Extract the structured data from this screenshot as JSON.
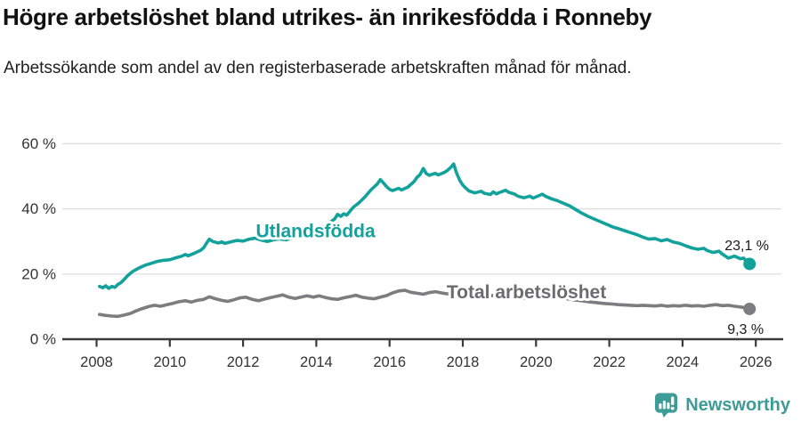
{
  "header": {
    "title": "Högre arbetslöshet bland utrikes- än inrikesfödda i Ronneby",
    "subtitle": "Arbetssökande som andel av den registerbaserade arbetskraften månad för månad."
  },
  "footer": {
    "brand": "Newsworthy",
    "logo_icon": "newsworthy-chart-bubble-icon"
  },
  "colors": {
    "accent_teal": "#13a29b",
    "line_gray": "#7c7c81",
    "series_label_gray": "#6b6b70",
    "axis": "#3a3a3a",
    "tick_text": "#333333",
    "grid": "#dcdcdc",
    "value_label_text": "#1a1a1a",
    "logo_teal": "#3d9c96",
    "background": "#ffffff"
  },
  "chart_data": {
    "type": "line",
    "title": "Högre arbetslöshet bland utrikes- än inrikesfödda i Ronneby",
    "subtitle": "Arbetssökande som andel av den registerbaserade arbetskraften månad för månad.",
    "unit": "%",
    "grid": "horizontal-only",
    "legend_position": "inline-labels",
    "x_axis": {
      "ticks": [
        2008,
        2010,
        2012,
        2014,
        2016,
        2018,
        2020,
        2022,
        2024,
        2026
      ],
      "range": [
        2007.1,
        2026.8
      ]
    },
    "y_axis": {
      "ticks": [
        {
          "value": 0,
          "label": "0 %"
        },
        {
          "value": 20,
          "label": "20 %"
        },
        {
          "value": 40,
          "label": "40 %"
        },
        {
          "value": 60,
          "label": "60 %"
        }
      ],
      "range": [
        0,
        60
      ]
    },
    "series": [
      {
        "name": "Utlandsfödda",
        "color": "#13a29b",
        "label_color": "#13a29b",
        "label_anchor": {
          "year": 2012.35,
          "value": 31.3
        },
        "end_value": 23.1,
        "end_label": "23,1 %",
        "points": [
          [
            2008.08,
            16.2
          ],
          [
            2008.17,
            15.8
          ],
          [
            2008.25,
            16.4
          ],
          [
            2008.33,
            15.6
          ],
          [
            2008.42,
            16.2
          ],
          [
            2008.5,
            15.9
          ],
          [
            2008.58,
            16.8
          ],
          [
            2008.67,
            17.4
          ],
          [
            2008.75,
            18.3
          ],
          [
            2008.83,
            19.3
          ],
          [
            2008.92,
            20.2
          ],
          [
            2009.0,
            20.9
          ],
          [
            2009.17,
            21.9
          ],
          [
            2009.33,
            22.7
          ],
          [
            2009.5,
            23.3
          ],
          [
            2009.67,
            23.9
          ],
          [
            2009.83,
            24.2
          ],
          [
            2010.0,
            24.4
          ],
          [
            2010.17,
            25.0
          ],
          [
            2010.33,
            25.5
          ],
          [
            2010.42,
            26.0
          ],
          [
            2010.5,
            25.6
          ],
          [
            2010.67,
            26.4
          ],
          [
            2010.83,
            27.2
          ],
          [
            2010.92,
            28.0
          ],
          [
            2011.0,
            29.4
          ],
          [
            2011.08,
            30.7
          ],
          [
            2011.17,
            30.0
          ],
          [
            2011.33,
            29.5
          ],
          [
            2011.42,
            29.9
          ],
          [
            2011.5,
            29.4
          ],
          [
            2011.67,
            29.9
          ],
          [
            2011.83,
            30.3
          ],
          [
            2012.0,
            30.1
          ],
          [
            2012.17,
            30.7
          ],
          [
            2012.33,
            31.0
          ],
          [
            2012.5,
            30.4
          ],
          [
            2012.67,
            30.0
          ],
          [
            2012.83,
            30.5
          ],
          [
            2013.0,
            30.8
          ],
          [
            2013.17,
            30.5
          ],
          [
            2013.33,
            31.0
          ],
          [
            2013.5,
            31.4
          ],
          [
            2013.67,
            31.9
          ],
          [
            2013.83,
            32.5
          ],
          [
            2014.0,
            33.2
          ],
          [
            2014.17,
            34.3
          ],
          [
            2014.33,
            35.5
          ],
          [
            2014.5,
            36.9
          ],
          [
            2014.58,
            38.3
          ],
          [
            2014.67,
            37.7
          ],
          [
            2014.75,
            38.5
          ],
          [
            2014.83,
            38.1
          ],
          [
            2014.92,
            39.3
          ],
          [
            2015.0,
            40.4
          ],
          [
            2015.17,
            41.9
          ],
          [
            2015.33,
            43.7
          ],
          [
            2015.5,
            45.9
          ],
          [
            2015.67,
            47.7
          ],
          [
            2015.75,
            49.0
          ],
          [
            2015.83,
            48.0
          ],
          [
            2015.92,
            46.8
          ],
          [
            2016.0,
            46.0
          ],
          [
            2016.08,
            45.6
          ],
          [
            2016.25,
            46.3
          ],
          [
            2016.33,
            45.8
          ],
          [
            2016.5,
            46.7
          ],
          [
            2016.67,
            48.4
          ],
          [
            2016.75,
            49.7
          ],
          [
            2016.83,
            50.5
          ],
          [
            2016.92,
            52.4
          ],
          [
            2017.0,
            50.9
          ],
          [
            2017.08,
            50.3
          ],
          [
            2017.25,
            50.9
          ],
          [
            2017.33,
            50.4
          ],
          [
            2017.5,
            51.2
          ],
          [
            2017.58,
            51.8
          ],
          [
            2017.67,
            52.7
          ],
          [
            2017.75,
            53.8
          ],
          [
            2017.83,
            51.0
          ],
          [
            2017.92,
            48.7
          ],
          [
            2018.0,
            47.3
          ],
          [
            2018.08,
            46.4
          ],
          [
            2018.17,
            45.5
          ],
          [
            2018.33,
            44.9
          ],
          [
            2018.5,
            45.4
          ],
          [
            2018.58,
            44.8
          ],
          [
            2018.75,
            44.4
          ],
          [
            2018.83,
            45.2
          ],
          [
            2018.92,
            44.6
          ],
          [
            2019.0,
            45.0
          ],
          [
            2019.17,
            45.7
          ],
          [
            2019.25,
            45.1
          ],
          [
            2019.42,
            44.5
          ],
          [
            2019.5,
            43.9
          ],
          [
            2019.67,
            43.4
          ],
          [
            2019.83,
            43.9
          ],
          [
            2019.92,
            43.3
          ],
          [
            2020.0,
            43.7
          ],
          [
            2020.17,
            44.5
          ],
          [
            2020.25,
            43.9
          ],
          [
            2020.42,
            43.1
          ],
          [
            2020.58,
            42.5
          ],
          [
            2020.75,
            41.7
          ],
          [
            2020.92,
            40.9
          ],
          [
            2021.08,
            39.8
          ],
          [
            2021.25,
            38.7
          ],
          [
            2021.42,
            37.7
          ],
          [
            2021.58,
            36.9
          ],
          [
            2021.75,
            36.1
          ],
          [
            2021.92,
            35.3
          ],
          [
            2022.08,
            34.5
          ],
          [
            2022.25,
            33.9
          ],
          [
            2022.42,
            33.3
          ],
          [
            2022.58,
            32.7
          ],
          [
            2022.75,
            32.1
          ],
          [
            2022.92,
            31.3
          ],
          [
            2023.08,
            30.7
          ],
          [
            2023.25,
            30.9
          ],
          [
            2023.42,
            30.2
          ],
          [
            2023.58,
            30.6
          ],
          [
            2023.75,
            29.8
          ],
          [
            2023.92,
            29.4
          ],
          [
            2024.08,
            28.7
          ],
          [
            2024.25,
            28.0
          ],
          [
            2024.42,
            27.6
          ],
          [
            2024.58,
            27.9
          ],
          [
            2024.67,
            27.2
          ],
          [
            2024.83,
            26.6
          ],
          [
            2025.0,
            27.0
          ],
          [
            2025.08,
            26.2
          ],
          [
            2025.25,
            24.9
          ],
          [
            2025.42,
            25.5
          ],
          [
            2025.58,
            24.7
          ],
          [
            2025.67,
            24.9
          ],
          [
            2025.75,
            23.8
          ],
          [
            2025.83,
            23.1
          ]
        ]
      },
      {
        "name": "Total arbetslöshet",
        "color": "#7c7c81",
        "label_color": "#6b6b70",
        "label_anchor": {
          "year": 2017.56,
          "value": 12.55
        },
        "end_value": 9.3,
        "end_label": "9,3 %",
        "points": [
          [
            2008.08,
            7.6
          ],
          [
            2008.25,
            7.3
          ],
          [
            2008.42,
            7.1
          ],
          [
            2008.58,
            7.0
          ],
          [
            2008.75,
            7.4
          ],
          [
            2008.92,
            7.9
          ],
          [
            2009.08,
            8.7
          ],
          [
            2009.25,
            9.4
          ],
          [
            2009.42,
            10.0
          ],
          [
            2009.58,
            10.4
          ],
          [
            2009.75,
            10.1
          ],
          [
            2009.92,
            10.6
          ],
          [
            2010.08,
            11.0
          ],
          [
            2010.25,
            11.5
          ],
          [
            2010.42,
            11.8
          ],
          [
            2010.58,
            11.4
          ],
          [
            2010.75,
            11.9
          ],
          [
            2010.92,
            12.2
          ],
          [
            2011.08,
            13.0
          ],
          [
            2011.25,
            12.4
          ],
          [
            2011.42,
            11.9
          ],
          [
            2011.58,
            11.6
          ],
          [
            2011.75,
            12.1
          ],
          [
            2011.92,
            12.7
          ],
          [
            2012.08,
            12.9
          ],
          [
            2012.25,
            12.2
          ],
          [
            2012.42,
            11.8
          ],
          [
            2012.58,
            12.3
          ],
          [
            2012.75,
            12.8
          ],
          [
            2012.92,
            13.2
          ],
          [
            2013.08,
            13.6
          ],
          [
            2013.25,
            12.9
          ],
          [
            2013.42,
            12.5
          ],
          [
            2013.58,
            12.9
          ],
          [
            2013.75,
            13.3
          ],
          [
            2013.92,
            12.9
          ],
          [
            2014.08,
            13.3
          ],
          [
            2014.25,
            12.8
          ],
          [
            2014.42,
            12.4
          ],
          [
            2014.58,
            12.2
          ],
          [
            2014.75,
            12.7
          ],
          [
            2014.92,
            13.1
          ],
          [
            2015.08,
            13.5
          ],
          [
            2015.25,
            12.9
          ],
          [
            2015.42,
            12.6
          ],
          [
            2015.58,
            12.4
          ],
          [
            2015.75,
            12.9
          ],
          [
            2015.92,
            13.4
          ],
          [
            2016.08,
            14.2
          ],
          [
            2016.25,
            14.8
          ],
          [
            2016.42,
            15.0
          ],
          [
            2016.58,
            14.4
          ],
          [
            2016.75,
            14.1
          ],
          [
            2016.92,
            13.8
          ],
          [
            2017.08,
            14.3
          ],
          [
            2017.25,
            14.6
          ],
          [
            2017.42,
            14.2
          ],
          [
            2017.58,
            13.9
          ],
          [
            2017.75,
            14.1
          ],
          [
            2017.92,
            13.8
          ],
          [
            2018.08,
            14.0
          ],
          [
            2018.25,
            13.7
          ],
          [
            2018.42,
            13.4
          ],
          [
            2018.58,
            13.6
          ],
          [
            2018.75,
            13.3
          ],
          [
            2018.92,
            13.5
          ],
          [
            2019.08,
            13.2
          ],
          [
            2019.25,
            12.9
          ],
          [
            2019.42,
            12.7
          ],
          [
            2019.58,
            12.5
          ],
          [
            2019.75,
            12.8
          ],
          [
            2019.92,
            13.1
          ],
          [
            2020.08,
            13.5
          ],
          [
            2020.25,
            13.8
          ],
          [
            2020.42,
            13.3
          ],
          [
            2020.58,
            12.9
          ],
          [
            2020.75,
            12.6
          ],
          [
            2020.92,
            12.3
          ],
          [
            2021.08,
            12.0
          ],
          [
            2021.25,
            11.8
          ],
          [
            2021.42,
            11.5
          ],
          [
            2021.58,
            11.3
          ],
          [
            2021.75,
            11.1
          ],
          [
            2021.92,
            10.9
          ],
          [
            2022.08,
            10.8
          ],
          [
            2022.25,
            10.6
          ],
          [
            2022.42,
            10.5
          ],
          [
            2022.58,
            10.4
          ],
          [
            2022.75,
            10.3
          ],
          [
            2022.92,
            10.4
          ],
          [
            2023.08,
            10.3
          ],
          [
            2023.25,
            10.2
          ],
          [
            2023.42,
            10.4
          ],
          [
            2023.58,
            10.1
          ],
          [
            2023.75,
            10.3
          ],
          [
            2023.92,
            10.2
          ],
          [
            2024.08,
            10.4
          ],
          [
            2024.25,
            10.2
          ],
          [
            2024.42,
            10.3
          ],
          [
            2024.58,
            10.1
          ],
          [
            2024.75,
            10.4
          ],
          [
            2024.92,
            10.6
          ],
          [
            2025.08,
            10.3
          ],
          [
            2025.25,
            10.4
          ],
          [
            2025.42,
            10.1
          ],
          [
            2025.58,
            9.9
          ],
          [
            2025.75,
            9.6
          ],
          [
            2025.83,
            9.3
          ]
        ]
      }
    ]
  }
}
